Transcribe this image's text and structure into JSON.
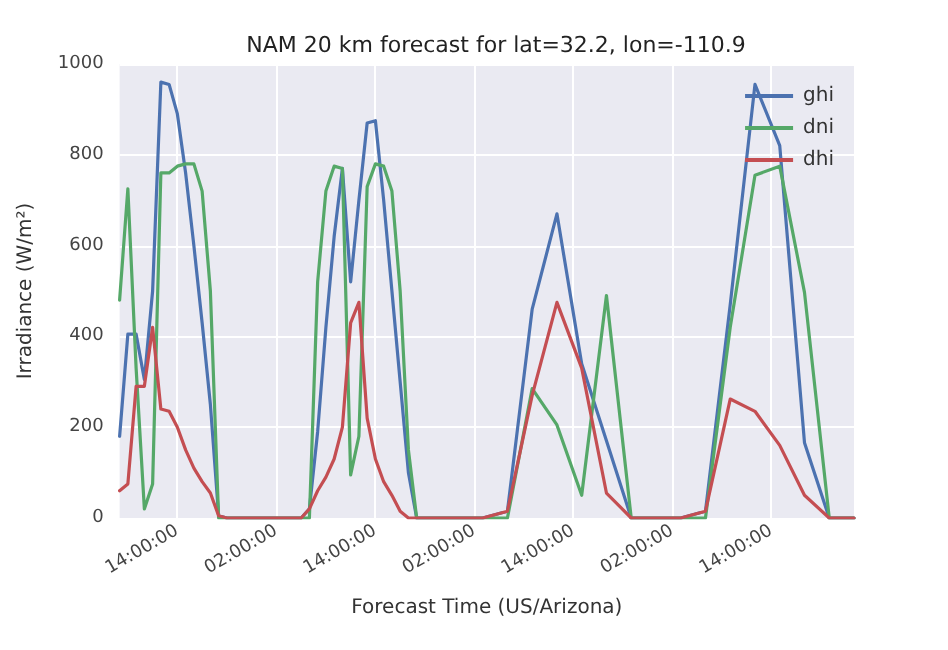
{
  "chart_data": {
    "type": "line",
    "title": "NAM 20 km forecast for lat=32.2, lon=-110.9",
    "xlabel": "Forecast Time (US/Arizona)",
    "ylabel": "Irradiance (W/m²)",
    "categories": [
      null,
      null,
      null,
      null,
      null,
      null,
      null,
      "14:00:00",
      null,
      null,
      null,
      null,
      null,
      null,
      null,
      null,
      null,
      null,
      null,
      "02:00:00",
      null,
      null,
      null,
      null,
      null,
      null,
      null,
      null,
      null,
      null,
      null,
      "14:00:00",
      null,
      null,
      null,
      null,
      null,
      null,
      null,
      null,
      null,
      null,
      null,
      "02:00:00",
      null,
      null,
      null,
      null,
      null,
      null,
      null,
      null,
      null,
      null,
      null,
      "14:00:00",
      null,
      null,
      null,
      null,
      null,
      null,
      null,
      null,
      null,
      null,
      null,
      "02:00:00",
      null,
      null,
      null,
      null,
      null,
      null,
      null,
      null,
      null,
      null,
      null,
      "14:00:00",
      null,
      null,
      null,
      null,
      null,
      null,
      null,
      null,
      null,
      null
    ],
    "series": [
      {
        "name": "ghi",
        "color": "#4c72b0",
        "values": [
          180,
          405,
          405,
          305,
          500,
          960,
          955,
          890,
          760,
          600,
          430,
          250,
          5,
          0,
          0,
          0,
          0,
          0,
          0,
          0,
          0,
          0,
          0,
          20,
          190,
          420,
          620,
          770,
          520,
          700,
          870,
          875,
          700,
          500,
          300,
          100,
          0,
          0,
          0,
          null,
          null,
          0,
          null,
          null,
          0,
          null,
          null,
          15,
          null,
          null,
          460,
          null,
          null,
          670,
          null,
          null,
          340,
          null,
          null,
          170,
          null,
          null,
          0,
          null,
          null,
          0,
          null,
          null,
          0,
          null,
          null,
          15,
          null,
          null,
          470,
          null,
          null,
          955,
          null,
          null,
          820,
          null,
          null,
          166,
          null,
          null,
          0,
          null,
          null,
          0
        ]
      },
      {
        "name": "dni",
        "color": "#55a868",
        "values": [
          480,
          725,
          330,
          20,
          75,
          760,
          760,
          775,
          780,
          780,
          720,
          500,
          0,
          0,
          0,
          0,
          0,
          0,
          0,
          0,
          0,
          0,
          0,
          0,
          520,
          720,
          775,
          770,
          95,
          180,
          730,
          780,
          775,
          720,
          500,
          150,
          0,
          0,
          0,
          null,
          null,
          0,
          null,
          null,
          0,
          null,
          null,
          0,
          null,
          null,
          285,
          null,
          null,
          205,
          null,
          null,
          50,
          null,
          null,
          490,
          null,
          null,
          0,
          null,
          null,
          0,
          null,
          null,
          0,
          null,
          null,
          0,
          null,
          null,
          420,
          null,
          null,
          755,
          null,
          null,
          775,
          null,
          null,
          497,
          null,
          null,
          0,
          null,
          null,
          0
        ]
      },
      {
        "name": "dhi",
        "color": "#c44e52",
        "values": [
          60,
          75,
          290,
          290,
          420,
          240,
          235,
          200,
          150,
          110,
          80,
          55,
          5,
          0,
          0,
          0,
          0,
          0,
          0,
          0,
          0,
          0,
          0,
          20,
          60,
          90,
          130,
          200,
          430,
          475,
          220,
          130,
          80,
          50,
          15,
          0,
          0,
          0,
          0,
          null,
          null,
          0,
          null,
          null,
          0,
          null,
          null,
          15,
          null,
          null,
          270,
          null,
          null,
          475,
          null,
          null,
          330,
          null,
          null,
          55,
          null,
          null,
          0,
          null,
          null,
          0,
          null,
          null,
          0,
          null,
          null,
          15,
          null,
          null,
          262,
          null,
          null,
          235,
          null,
          null,
          160,
          null,
          null,
          50,
          null,
          null,
          0,
          null,
          null,
          0
        ]
      }
    ],
    "ylim": [
      0,
      1000
    ],
    "yticks": [
      0,
      200,
      400,
      600,
      800,
      1000
    ],
    "grid": true,
    "legend": "top right",
    "marker": "none",
    "line_style": "solid"
  }
}
